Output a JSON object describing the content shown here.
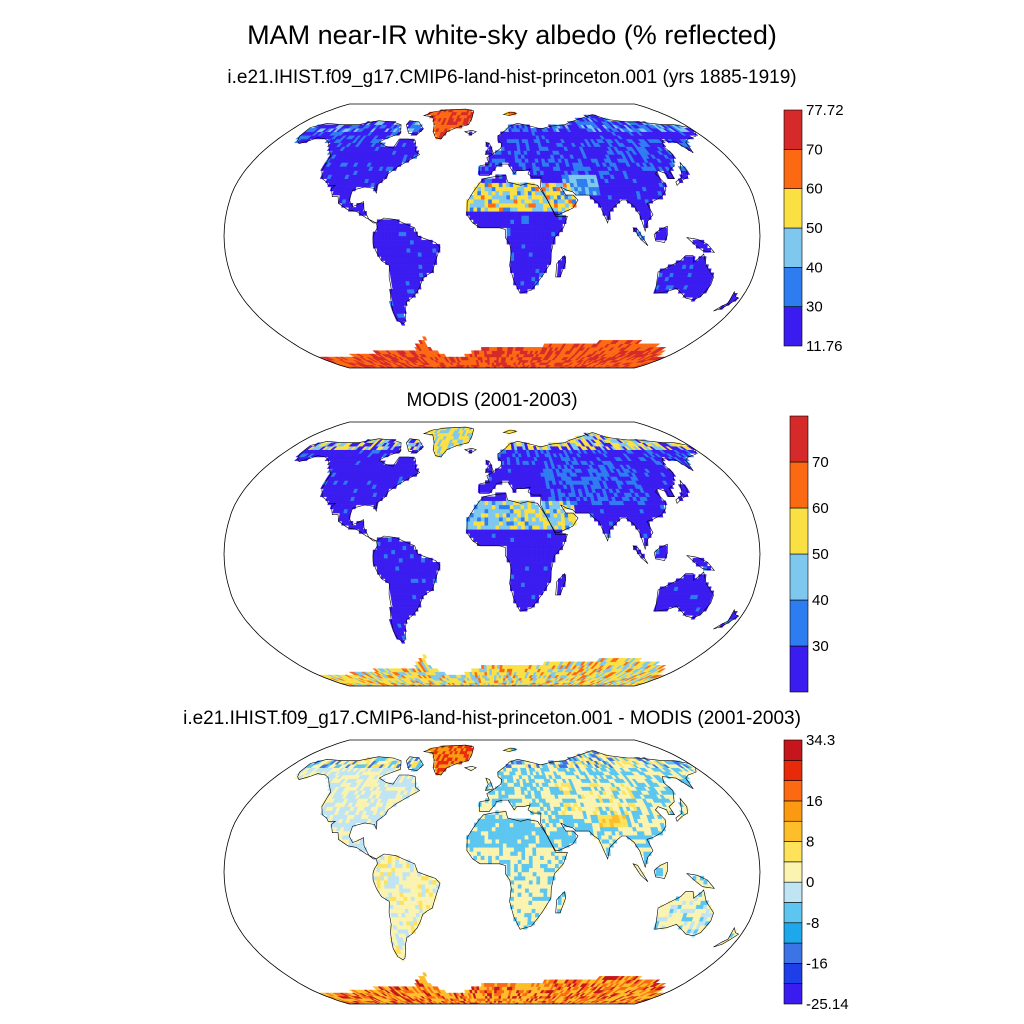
{
  "title": "MAM near-IR white-sky albedo (% reflected)",
  "panels": [
    {
      "title": "i.e21.IHIST.f09_g17.CMIP6-land-hist-princeton.001 (yrs 1885-1919)"
    },
    {
      "title": "MODIS (2001-2003)"
    },
    {
      "title": "i.e21.IHIST.f09_g17.CMIP6-land-hist-princeton.001 - MODIS (2001-2003)"
    }
  ],
  "chart_data": [
    {
      "type": "heatmap",
      "projection": "Robinson",
      "title": "i.e21.IHIST.f09_g17.CMIP6-land-hist-princeton.001 (yrs 1885-1919)",
      "colorbar": {
        "colors": [
          "#3a1cf0",
          "#2e7df0",
          "#7ec8ef",
          "#fbe044",
          "#fb6a12",
          "#d62a2a"
        ],
        "labels": [
          "77.72",
          "70",
          "60",
          "50",
          "40",
          "30",
          "11.76"
        ],
        "min": 11.76,
        "max": 77.72,
        "levels": [
          30,
          40,
          50,
          60,
          70
        ]
      }
    },
    {
      "type": "heatmap",
      "projection": "Robinson",
      "title": "MODIS (2001-2003)",
      "colorbar": {
        "colors": [
          "#3a1cf0",
          "#2e7df0",
          "#7ec8ef",
          "#fbe044",
          "#fb6a12",
          "#d62a2a"
        ],
        "labels": [
          "70",
          "60",
          "50",
          "40",
          "30"
        ],
        "levels": [
          30,
          40,
          50,
          60,
          70
        ]
      }
    },
    {
      "type": "heatmap",
      "projection": "Robinson",
      "title": "i.e21.IHIST.f09_g17.CMIP6-land-hist-princeton.001 - MODIS (2001-2003)",
      "colorbar": {
        "colors": [
          "#3a1cf0",
          "#1e3ee8",
          "#3c74e6",
          "#1da8ec",
          "#5cc6f0",
          "#bfe4f4",
          "#fbf3b0",
          "#fde25a",
          "#fdbe2a",
          "#fb9a10",
          "#fb6a12",
          "#e82a0a",
          "#c4161c"
        ],
        "labels": [
          "34.3",
          "16",
          "8",
          "0",
          "-8",
          "-16",
          "-25.14"
        ],
        "min": -25.14,
        "max": 34.3
      }
    }
  ]
}
